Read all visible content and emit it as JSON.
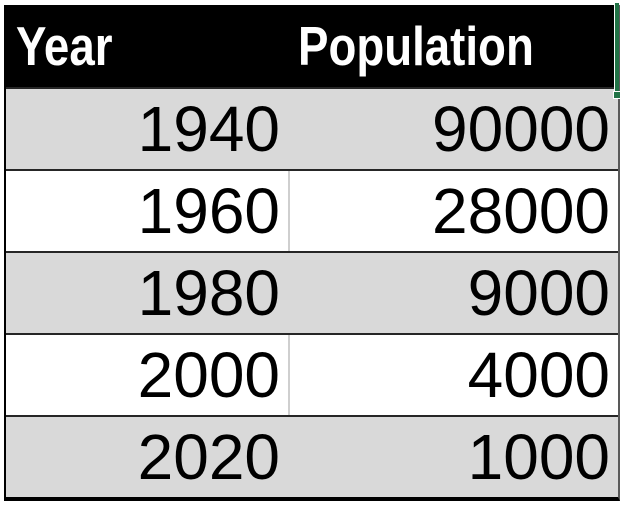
{
  "chart_data": {
    "type": "table",
    "title": "",
    "columns": [
      "Year",
      "Population"
    ],
    "rows": [
      [
        1940,
        90000
      ],
      [
        1960,
        28000
      ],
      [
        1980,
        9000
      ],
      [
        2000,
        4000
      ],
      [
        2020,
        1000
      ]
    ]
  },
  "table": {
    "header": {
      "year_label": "Year",
      "population_label": "Population"
    },
    "rows": [
      {
        "year": "1940",
        "population": "90000"
      },
      {
        "year": "1960",
        "population": "28000"
      },
      {
        "year": "1980",
        "population": "9000"
      },
      {
        "year": "2000",
        "population": "4000"
      },
      {
        "year": "2020",
        "population": "1000"
      }
    ]
  },
  "colors": {
    "header_bg": "#000000",
    "header_text": "#ffffff",
    "row_bg": "#ffffff",
    "row_alt_bg": "#d9d9d9",
    "row_border": "#262626",
    "column_divider": "#cfcfcf",
    "outer_border": "#000000",
    "selection_green": "#217346"
  }
}
